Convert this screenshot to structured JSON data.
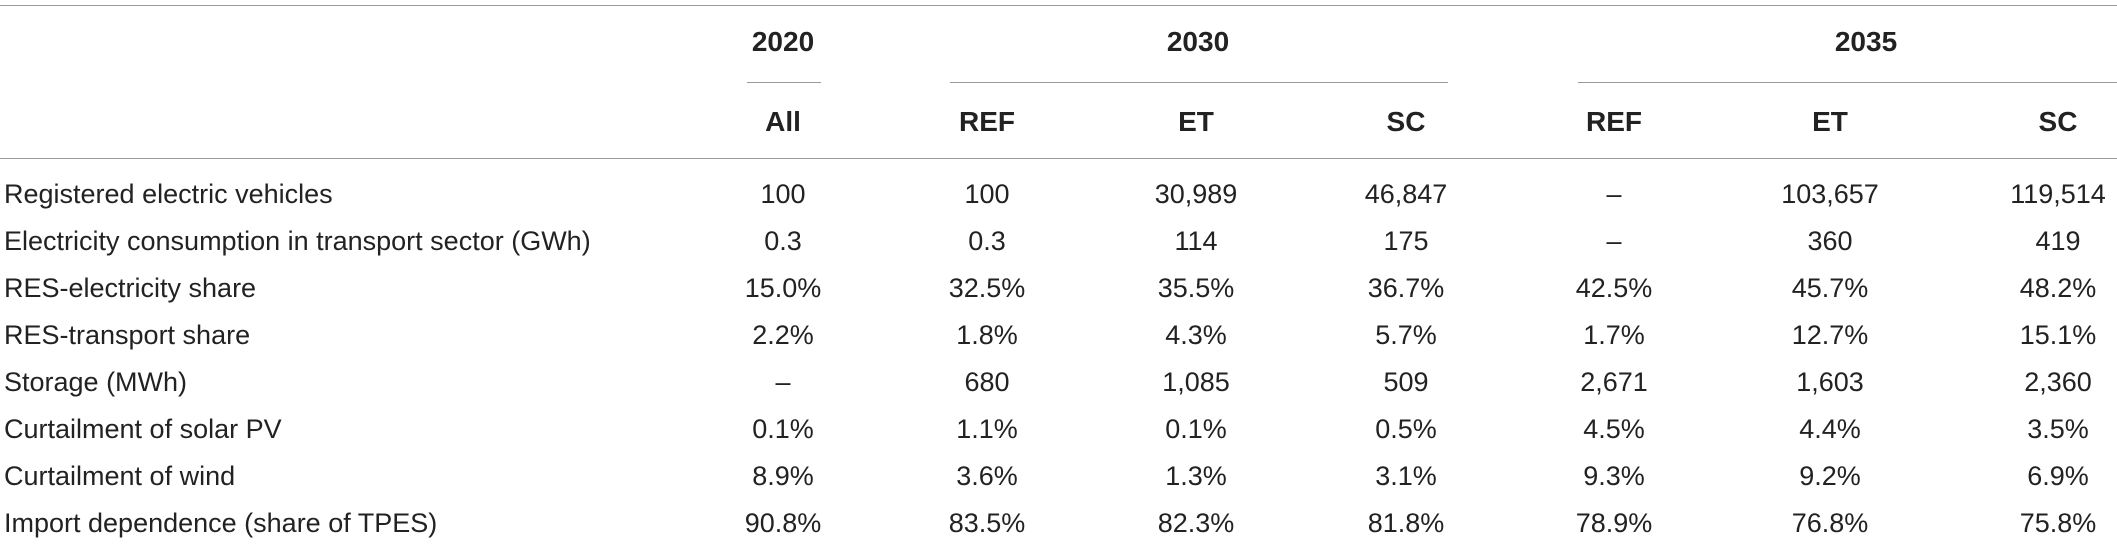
{
  "header": {
    "groups": [
      {
        "year": "2020",
        "scenarios": [
          "All"
        ]
      },
      {
        "year": "2030",
        "scenarios": [
          "REF",
          "ET",
          "SC"
        ]
      },
      {
        "year": "2035",
        "scenarios": [
          "REF",
          "ET",
          "SC"
        ]
      }
    ]
  },
  "rows": [
    {
      "label": "Registered electric vehicles",
      "values": [
        "100",
        "100",
        "30,989",
        "46,847",
        "–",
        "103,657",
        "119,514"
      ]
    },
    {
      "label": "Electricity consumption in transport sector (GWh)",
      "values": [
        "0.3",
        "0.3",
        "114",
        "175",
        "–",
        "360",
        "419"
      ]
    },
    {
      "label": "RES-electricity share",
      "values": [
        "15.0%",
        "32.5%",
        "35.5%",
        "36.7%",
        "42.5%",
        "45.7%",
        "48.2%"
      ]
    },
    {
      "label": "RES-transport share",
      "values": [
        "2.2%",
        "1.8%",
        "4.3%",
        "5.7%",
        "1.7%",
        "12.7%",
        "15.1%"
      ]
    },
    {
      "label": "Storage (MWh)",
      "values": [
        "–",
        "680",
        "1,085",
        "509",
        "2,671",
        "1,603",
        "2,360"
      ]
    },
    {
      "label": "Curtailment of solar PV",
      "values": [
        "0.1%",
        "1.1%",
        "0.1%",
        "0.5%",
        "4.5%",
        "4.4%",
        "3.5%"
      ]
    },
    {
      "label": "Curtailment of wind",
      "values": [
        "8.9%",
        "3.6%",
        "1.3%",
        "3.1%",
        "9.3%",
        "9.2%",
        "6.9%"
      ]
    },
    {
      "label": "Import dependence (share of TPES)",
      "values": [
        "90.8%",
        "83.5%",
        "82.3%",
        "81.8%",
        "78.9%",
        "76.8%",
        "75.8%"
      ]
    }
  ]
}
